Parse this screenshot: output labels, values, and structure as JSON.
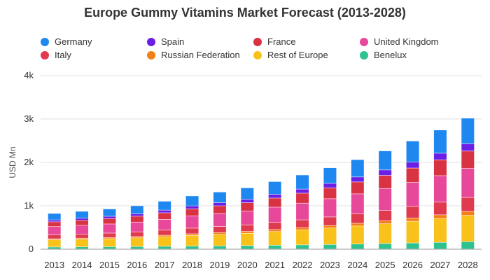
{
  "chart_data": {
    "type": "bar",
    "stacked": true,
    "title": "Europe Gummy Vitamins Market Forecast (2013-2028)",
    "xlabel": "",
    "ylabel": "USD Mn",
    "ylim": [
      0,
      4000
    ],
    "yticks": [
      0,
      1000,
      2000,
      3000,
      4000
    ],
    "ytick_labels": [
      "0",
      "1k",
      "2k",
      "3k",
      "4k"
    ],
    "grid": true,
    "legend_position": "top",
    "categories": [
      "2013",
      "2014",
      "2015",
      "2016",
      "2017",
      "2018",
      "2019",
      "2020",
      "2021",
      "2022",
      "2023",
      "2024",
      "2025",
      "2026",
      "2027",
      "2028"
    ],
    "series": [
      {
        "name": "Benelux",
        "color": "#2ec28f",
        "values": [
          45,
          48,
          52,
          56,
          62,
          68,
          72,
          78,
          86,
          94,
          103,
          114,
          126,
          139,
          153,
          169
        ]
      },
      {
        "name": "Rest of Europe",
        "color": "#f8c21a",
        "values": [
          165,
          175,
          185,
          200,
          220,
          245,
          265,
          285,
          315,
          345,
          380,
          415,
          455,
          500,
          550,
          605
        ]
      },
      {
        "name": "Russian Federation",
        "color": "#f57f17",
        "values": [
          25,
          27,
          29,
          31,
          34,
          37,
          40,
          43,
          47,
          52,
          57,
          63,
          69,
          76,
          84,
          92
        ]
      },
      {
        "name": "Italy",
        "color": "#e03a4e",
        "values": [
          90,
          95,
          100,
          108,
          118,
          130,
          140,
          150,
          165,
          180,
          198,
          218,
          240,
          265,
          292,
          320
        ]
      },
      {
        "name": "United Kingdom",
        "color": "#e8489a",
        "values": [
          190,
          200,
          210,
          225,
          250,
          280,
          300,
          320,
          350,
          385,
          420,
          460,
          505,
          555,
          610,
          670
        ]
      },
      {
        "name": "France",
        "color": "#d93242",
        "values": [
          110,
          115,
          125,
          135,
          150,
          165,
          178,
          190,
          210,
          230,
          250,
          275,
          300,
          330,
          365,
          400
        ]
      },
      {
        "name": "Spain",
        "color": "#6b1ee6",
        "values": [
          45,
          48,
          52,
          56,
          62,
          68,
          73,
          78,
          86,
          94,
          104,
          114,
          125,
          138,
          152,
          168
        ]
      },
      {
        "name": "Germany",
        "color": "#1e88f0",
        "values": [
          150,
          160,
          170,
          185,
          205,
          230,
          245,
          265,
          295,
          325,
          360,
          400,
          440,
          485,
          535,
          590
        ]
      }
    ]
  },
  "legend": {
    "items": [
      {
        "name": "Germany",
        "color": "#1e88f0"
      },
      {
        "name": "Spain",
        "color": "#6b1ee6"
      },
      {
        "name": "France",
        "color": "#d93242"
      },
      {
        "name": "United Kingdom",
        "color": "#e8489a"
      },
      {
        "name": "Italy",
        "color": "#e03a4e"
      },
      {
        "name": "Russian Federation",
        "color": "#f57f17"
      },
      {
        "name": "Rest of Europe",
        "color": "#f8c21a"
      },
      {
        "name": "Benelux",
        "color": "#2ec28f"
      }
    ]
  }
}
